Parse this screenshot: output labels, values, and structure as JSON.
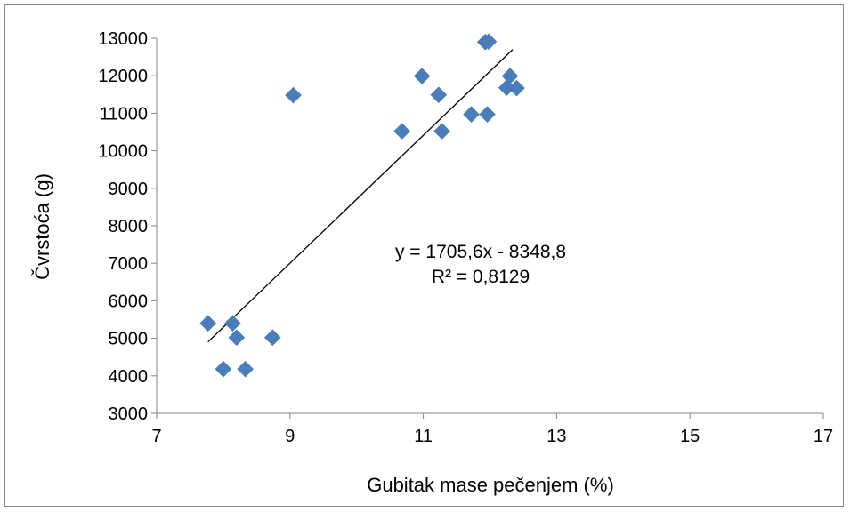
{
  "chart_data": {
    "type": "scatter",
    "title": "",
    "xlabel": "Gubitak mase pečenjem (%)",
    "ylabel": "Čvrstoća (g)",
    "xlim": [
      7,
      17
    ],
    "ylim": [
      3000,
      13000
    ],
    "xticks": [
      7,
      9,
      11,
      13,
      15,
      17
    ],
    "yticks": [
      3000,
      4000,
      5000,
      6000,
      7000,
      8000,
      9000,
      10000,
      11000,
      12000,
      13000
    ],
    "grid": false,
    "legend": "none",
    "marker_color": "#4A7EBB",
    "series": [
      {
        "marker": "diamond",
        "points": [
          {
            "x": 7.77,
            "y": 5400
          },
          {
            "x": 8.14,
            "y": 5400
          },
          {
            "x": 8.2,
            "y": 5020
          },
          {
            "x": 8.0,
            "y": 4180
          },
          {
            "x": 8.33,
            "y": 4180
          },
          {
            "x": 8.74,
            "y": 5020
          },
          {
            "x": 9.05,
            "y": 11480
          },
          {
            "x": 10.68,
            "y": 10520
          },
          {
            "x": 10.98,
            "y": 11990
          },
          {
            "x": 11.23,
            "y": 11490
          },
          {
            "x": 11.28,
            "y": 10520
          },
          {
            "x": 11.72,
            "y": 10970
          },
          {
            "x": 11.93,
            "y": 12900
          },
          {
            "x": 11.98,
            "y": 12910
          },
          {
            "x": 11.96,
            "y": 10970
          },
          {
            "x": 12.25,
            "y": 11680
          },
          {
            "x": 12.3,
            "y": 11990
          },
          {
            "x": 12.4,
            "y": 11670
          }
        ]
      }
    ],
    "trendline": {
      "color": "#000000",
      "x_range": [
        7.77,
        12.34
      ],
      "slope": 1705.6,
      "intercept": -8348.8,
      "equation": "y = 1705,6x - 8348,8",
      "r2": "R² = 0,8129"
    }
  }
}
